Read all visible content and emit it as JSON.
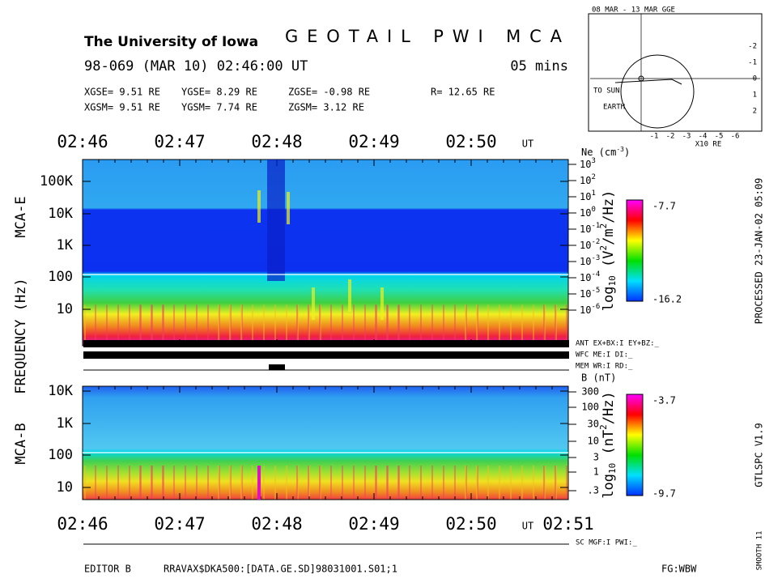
{
  "header": {
    "institution": "The University of Iowa",
    "title": "GEOTAIL PWI MCA",
    "date": "98-069 (MAR 10) 02:46:00 UT",
    "duration": "05 mins"
  },
  "position": {
    "gse": [
      "XGSE=  9.51 RE",
      "YGSE=  8.29 RE",
      "ZGSE= -0.98 RE",
      "R= 12.65 RE"
    ],
    "gsm": [
      "XGSM=  9.51 RE",
      "YGSM=  7.74 RE",
      "ZGSM=  3.12 RE"
    ]
  },
  "orbit": {
    "title": "08 MAR - 13 MAR  GGE",
    "sun": "TO SUN",
    "earth": "EARTH",
    "xticks": [
      "-1",
      "-2",
      "-3",
      "-4",
      "-5",
      "-6"
    ],
    "xunit": "X10 RE",
    "yticks": [
      "-2",
      "-1",
      "0",
      "1",
      "2"
    ]
  },
  "time_axis": {
    "labels": [
      "02:46",
      "02:47",
      "02:48",
      "02:49",
      "02:50"
    ],
    "unit": "UT",
    "end": "02:51"
  },
  "frequency_label": "FREQUENCY (Hz)",
  "mca_e": {
    "name": "MCA-E",
    "freq_labels": [
      "100K",
      "10K",
      "1K",
      "100",
      "10"
    ],
    "density": {
      "title": [
        "Ne (cm",
        "-3",
        ")"
      ],
      "base": "10",
      "exponents": [
        "3",
        "2",
        "1",
        "0",
        "-1",
        "-2",
        "-3",
        "-4",
        "-5",
        "-6"
      ]
    },
    "colorbar": {
      "max": "-7.7",
      "min": "-16.2",
      "label": [
        "log",
        "10",
        " (V",
        "2",
        "/m",
        "2",
        "/Hz)"
      ]
    }
  },
  "status": [
    "ANT EX+BX:I  EY+BZ:_",
    "WFC ME:I     DI:_",
    "MEM WR:I     RD:_"
  ],
  "mca_b": {
    "name": "MCA-B",
    "freq_labels": [
      "10K",
      "1K",
      "100",
      "10"
    ],
    "field": {
      "title": "B (nT)",
      "labels": [
        "300",
        "100",
        "30",
        "10",
        "3",
        "1",
        ".3"
      ]
    },
    "colorbar": {
      "max": "-3.7",
      "min": "-9.7",
      "label": [
        "log",
        "10",
        " (nT",
        "2",
        "/Hz)"
      ]
    }
  },
  "sc_status": "SC MGF:I  PWI:_",
  "footer": {
    "editor": "EDITOR B",
    "file": "RRAVAX$DKA500:[DATA.GE.SD]98031001.S01;1",
    "fg": "FG:WBW"
  },
  "side": {
    "processed": "PROCESSED 23-JAN-02  05:09",
    "version": "GTLSPC  V1.9",
    "smooth": "SMOOTH 11"
  }
}
